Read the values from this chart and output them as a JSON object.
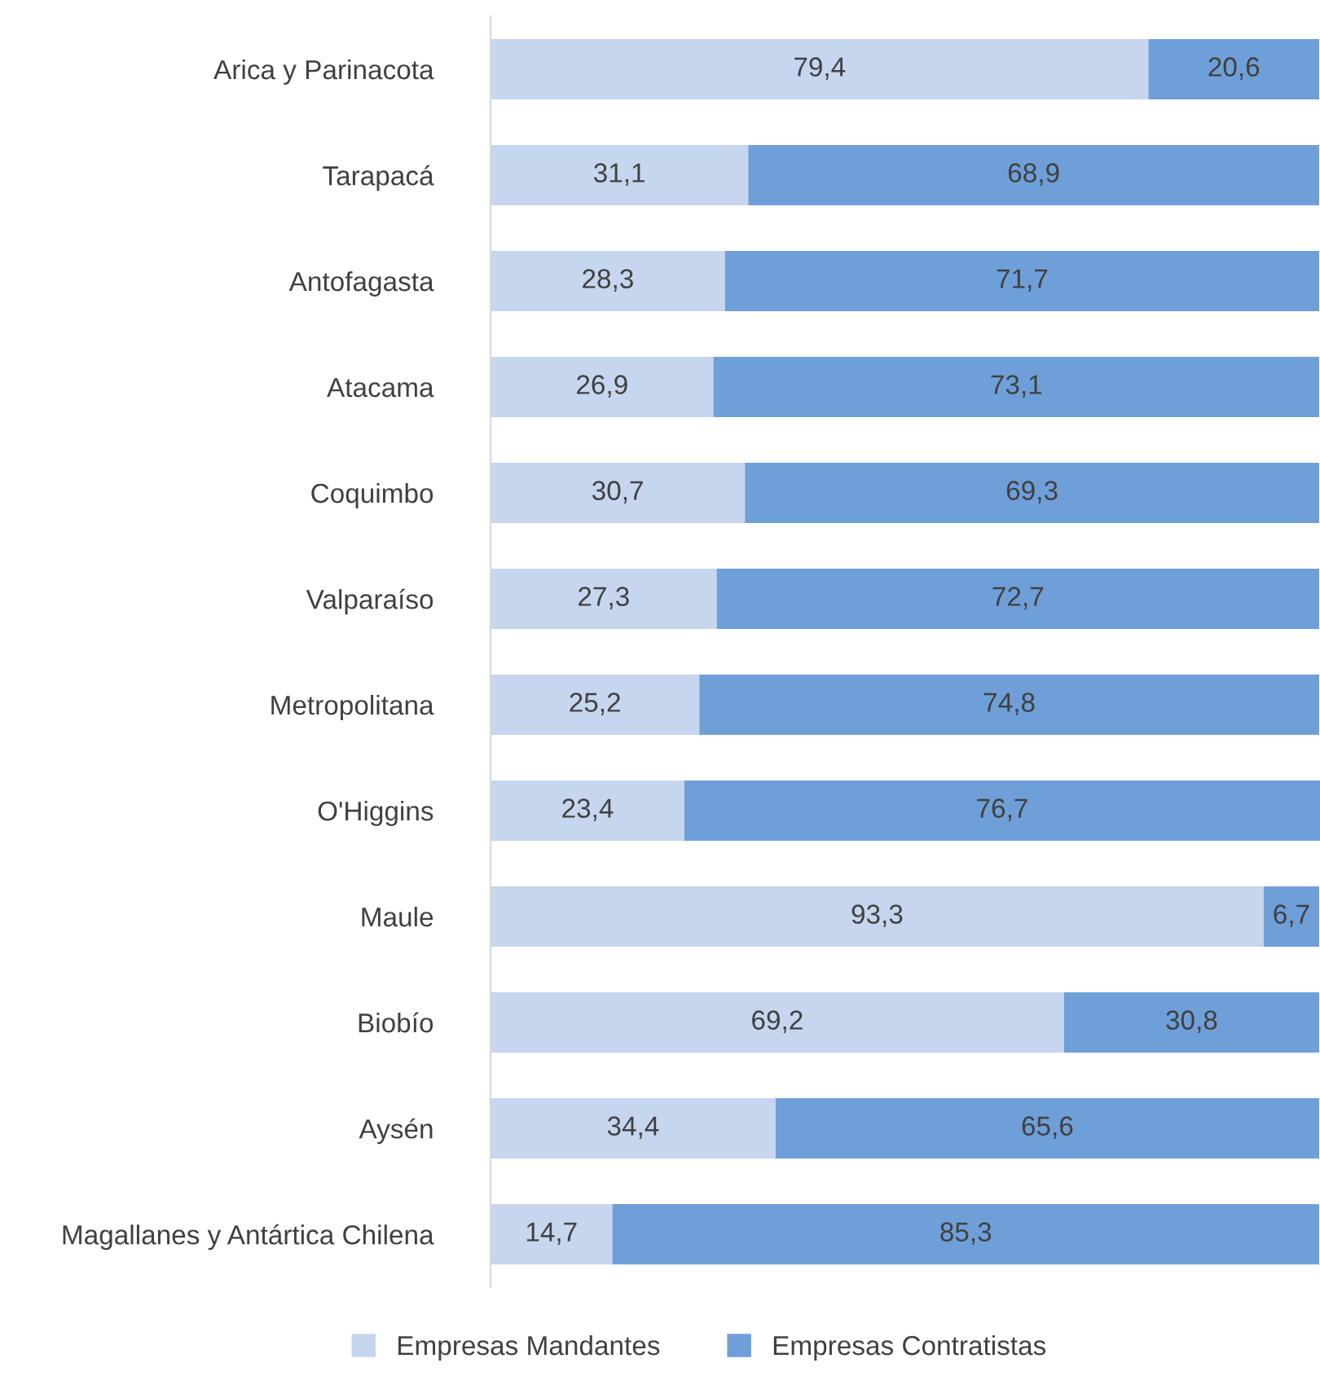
{
  "chart_data": {
    "type": "bar",
    "orientation": "horizontal",
    "stacked": true,
    "legend": "bottom",
    "categories": [
      "Arica y Parinacota",
      "Tarapacá",
      "Antofagasta",
      "Atacama",
      "Coquimbo",
      "Valparaíso",
      "Metropolitana",
      "O'Higgins",
      "Maule",
      "Biobío",
      "Aysén",
      "Magallanes y Antártica Chilena"
    ],
    "series": [
      {
        "name": "Empresas Mandantes",
        "color": "#c5d6ee",
        "values": [
          79.4,
          31.1,
          28.3,
          26.9,
          30.7,
          27.3,
          25.2,
          23.4,
          93.3,
          69.2,
          34.4,
          14.7
        ],
        "value_labels": [
          "79,4",
          "31,1",
          "28,3",
          "26,9",
          "30,7",
          "27,3",
          "25,2",
          "23,4",
          "93,3",
          "69,2",
          "34,4",
          "14,7"
        ]
      },
      {
        "name": "Empresas Contratistas",
        "color": "#6f9fd8",
        "values": [
          20.6,
          68.9,
          71.7,
          73.1,
          69.3,
          72.7,
          74.8,
          76.7,
          6.7,
          30.8,
          65.6,
          85.3
        ],
        "value_labels": [
          "20,6",
          "68,9",
          "71,7",
          "73,1",
          "69,3",
          "72,7",
          "74,8",
          "76,7",
          "6,7",
          "30,8",
          "65,6",
          "85,3"
        ]
      }
    ]
  }
}
